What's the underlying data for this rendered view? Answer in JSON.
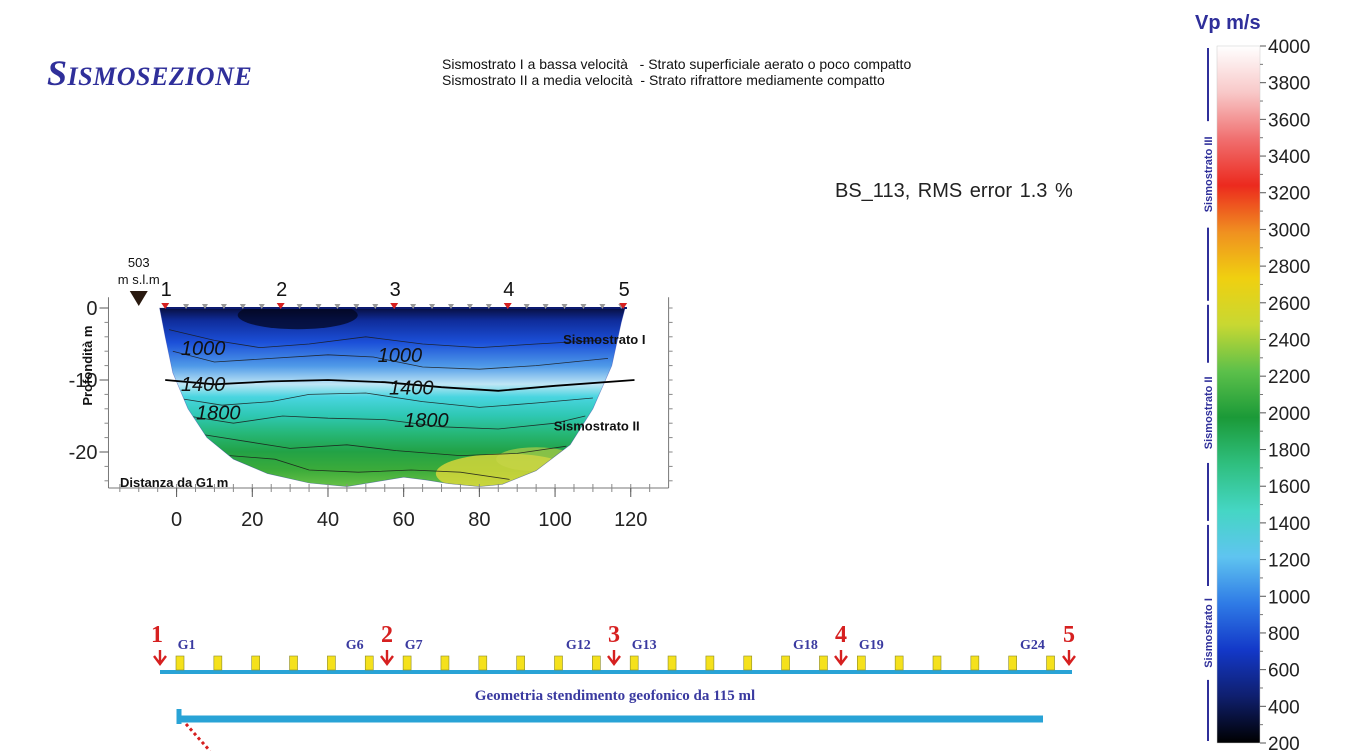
{
  "page": {
    "title_initial": "S",
    "title_rest": "ISMOSEZIONE",
    "legend_line1": "Sismostrato I a bassa velocità   - Strato superficiale aerato o poco compatto",
    "legend_line2": "Sismostrato II a media velocità  - Strato rifrattore mediamente compatto",
    "rms": "BS_113,     RMS error 1.3 %"
  },
  "chart_data": {
    "type": "heatmap",
    "xlabel": "Distanza da G1   m",
    "ylabel": "Profondità  m",
    "xlim": [
      -18,
      130
    ],
    "ylim": [
      -25,
      2
    ],
    "x_ticks": [
      "0",
      "20",
      "40",
      "60",
      "80",
      "100",
      "120"
    ],
    "x_tick_values": [
      0,
      20,
      40,
      60,
      80,
      100,
      120
    ],
    "y_ticks": [
      "0",
      "-10",
      "-20"
    ],
    "y_tick_values": [
      0,
      -10,
      -20
    ],
    "reference": {
      "elevation": "503",
      "unit": "m s.l.m",
      "x": -10
    },
    "shots": [
      {
        "label": "1",
        "x": -3
      },
      {
        "label": "2",
        "x": 27.5
      },
      {
        "label": "3",
        "x": 57.5
      },
      {
        "label": "4",
        "x": 87.5
      },
      {
        "label": "5",
        "x": 118
      }
    ],
    "contour_labels": [
      {
        "text": "1000",
        "x": 7,
        "y": -6.5
      },
      {
        "text": "1000",
        "x": 59,
        "y": -7.5
      },
      {
        "text": "1400",
        "x": 7,
        "y": -11.5
      },
      {
        "text": "1400",
        "x": 62,
        "y": -12
      },
      {
        "text": "1800",
        "x": 11,
        "y": -15.5
      },
      {
        "text": "1800",
        "x": 66,
        "y": -16.5
      }
    ],
    "layer_labels": [
      {
        "text": "Sismostrato I",
        "x": 113,
        "y": -5
      },
      {
        "text": "Sismostrato II",
        "x": 111,
        "y": -17
      }
    ],
    "colorbar": {
      "title": "Vp  m/s",
      "min": 200,
      "max": 4000,
      "ticks": [
        "4000",
        "3800",
        "3600",
        "3400",
        "3200",
        "3000",
        "2800",
        "2600",
        "2400",
        "2200",
        "2000",
        "1800",
        "1600",
        "1400",
        "1200",
        "1000",
        "800",
        "600",
        "400",
        "200"
      ],
      "layers": [
        {
          "label": "Sismostrato III",
          "range": [
            2600,
            4000
          ]
        },
        {
          "label": "Sismostrato II",
          "range": [
            1400,
            2600
          ]
        },
        {
          "label": "Sismostrato I",
          "range": [
            200,
            1400
          ]
        }
      ],
      "colors": [
        "#000000",
        "#0f1f6e",
        "#1338c8",
        "#2f7be6",
        "#5fc4f0",
        "#45d6c4",
        "#2fbf7f",
        "#1b9a38",
        "#5cc04a",
        "#c8d832",
        "#f0d010",
        "#f09020",
        "#ec2a1e",
        "#f07070",
        "#f8c8c8",
        "#ffffff"
      ]
    },
    "geometry": {
      "caption": "Geometria stendimento geofonico da 115 ml",
      "geophone_count": 24,
      "geophone_labels": [
        "G1",
        "G6",
        "G7",
        "G12",
        "G13",
        "G18",
        "G19",
        "G24"
      ],
      "shot_labels": [
        "1",
        "2",
        "3",
        "4",
        "5"
      ],
      "line_color": "#29a3d6",
      "geophone_color": "#f5e11c",
      "shot_color": "#d62020"
    }
  }
}
